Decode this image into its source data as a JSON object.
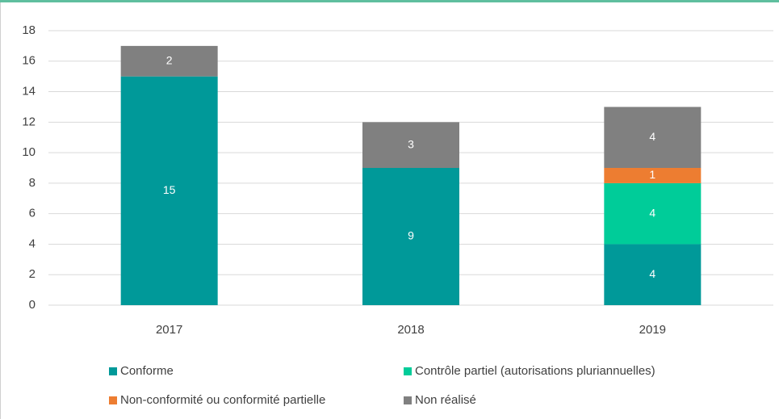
{
  "chart_data": {
    "type": "stacked_bar",
    "categories": [
      "2017",
      "2018",
      "2019"
    ],
    "series": [
      {
        "name": "Conforme",
        "color": "#009999",
        "values": [
          15,
          9,
          4
        ]
      },
      {
        "name": "Contrôle partiel (autorisations pluriannuelles)",
        "color": "#00cc99",
        "values": [
          null,
          null,
          4
        ]
      },
      {
        "name": "Non-conformité ou conformité partielle",
        "color": "#ed7d31",
        "values": [
          null,
          null,
          1
        ]
      },
      {
        "name": "Non réalisé",
        "color": "#808080",
        "values": [
          2,
          3,
          4
        ]
      }
    ],
    "ylim": [
      0,
      18
    ],
    "yticks": [
      0,
      2,
      4,
      6,
      8,
      10,
      12,
      14,
      16,
      18
    ],
    "grid": true
  }
}
